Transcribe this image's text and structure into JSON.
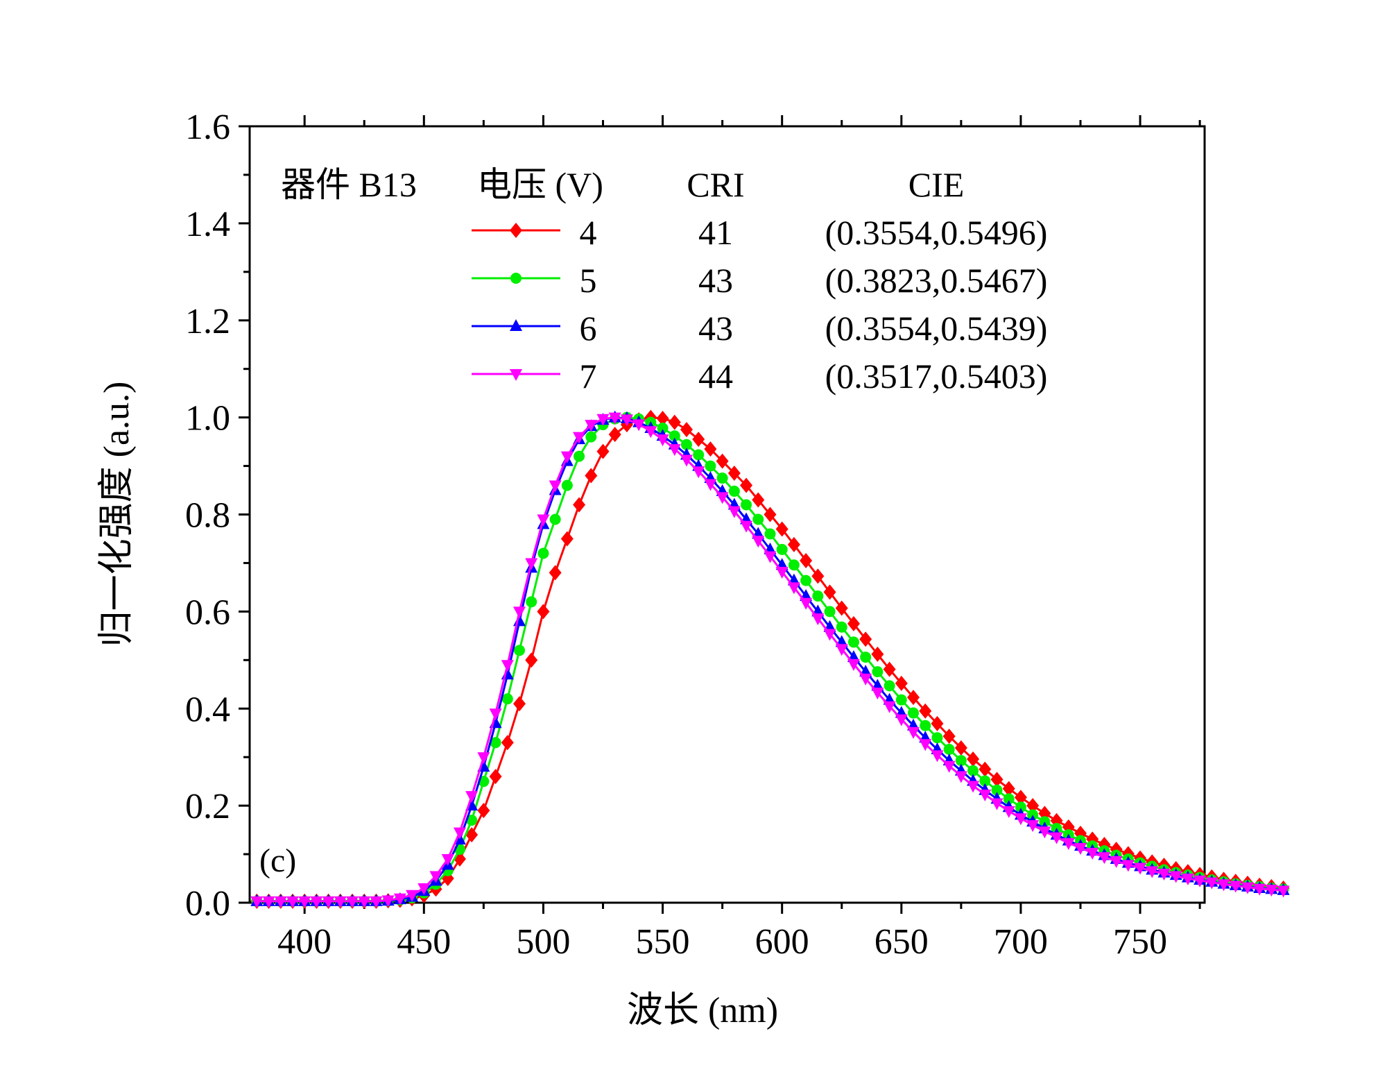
{
  "chart_data": {
    "type": "line",
    "panel_label": "(c)",
    "xlabel": "波长 (nm)",
    "ylabel": "归一化强度 (a.u.)",
    "xlim": [
      377,
      777
    ],
    "ylim": [
      0,
      1.6
    ],
    "xticks": [
      400,
      450,
      500,
      550,
      600,
      650,
      700,
      750
    ],
    "xtick_labels": [
      "400",
      "450",
      "500",
      "550",
      "600",
      "650",
      "700",
      "750"
    ],
    "yticks": [
      0.0,
      0.2,
      0.4,
      0.6,
      0.8,
      1.0,
      1.2,
      1.4,
      1.6
    ],
    "ytick_labels": [
      "0.0",
      "0.2",
      "0.4",
      "0.6",
      "0.8",
      "1.0",
      "1.2",
      "1.4",
      "1.6"
    ],
    "legend": {
      "device_label": "器件 B13",
      "col_voltage": "电压 (V)",
      "col_cri": "CRI",
      "col_cie": "CIE",
      "placement": "top-left"
    },
    "x_start": 380,
    "x_step": 5,
    "series": [
      {
        "name": "4",
        "cri": "41",
        "cie": "(0.3554,0.5496)",
        "color": "#ff0000",
        "marker": "diamond",
        "values": [
          0.003,
          0.003,
          0.003,
          0.003,
          0.003,
          0.003,
          0.003,
          0.003,
          0.003,
          0.003,
          0.003,
          0.004,
          0.005,
          0.008,
          0.015,
          0.028,
          0.05,
          0.09,
          0.14,
          0.19,
          0.26,
          0.33,
          0.41,
          0.5,
          0.6,
          0.68,
          0.75,
          0.82,
          0.88,
          0.93,
          0.965,
          0.985,
          0.995,
          1.0,
          0.998,
          0.99,
          0.975,
          0.955,
          0.935,
          0.91,
          0.885,
          0.86,
          0.83,
          0.8,
          0.77,
          0.738,
          0.705,
          0.673,
          0.64,
          0.607,
          0.575,
          0.543,
          0.512,
          0.481,
          0.452,
          0.423,
          0.395,
          0.369,
          0.343,
          0.319,
          0.296,
          0.275,
          0.254,
          0.235,
          0.217,
          0.2,
          0.184,
          0.169,
          0.156,
          0.143,
          0.131,
          0.12,
          0.11,
          0.101,
          0.092,
          0.084,
          0.077,
          0.07,
          0.064,
          0.058,
          0.053,
          0.048,
          0.044,
          0.04,
          0.036,
          0.033,
          0.03
        ]
      },
      {
        "name": "5",
        "cri": "43",
        "cie": "(0.3823,0.5467)",
        "color": "#00ee00",
        "marker": "circle",
        "values": [
          0.003,
          0.003,
          0.003,
          0.003,
          0.003,
          0.003,
          0.003,
          0.003,
          0.003,
          0.003,
          0.003,
          0.004,
          0.006,
          0.01,
          0.02,
          0.038,
          0.066,
          0.11,
          0.17,
          0.25,
          0.33,
          0.42,
          0.52,
          0.62,
          0.72,
          0.79,
          0.86,
          0.92,
          0.96,
          0.985,
          0.997,
          1.0,
          0.997,
          0.99,
          0.978,
          0.962,
          0.944,
          0.923,
          0.9,
          0.875,
          0.848,
          0.82,
          0.79,
          0.76,
          0.728,
          0.696,
          0.664,
          0.632,
          0.6,
          0.568,
          0.537,
          0.506,
          0.476,
          0.447,
          0.418,
          0.391,
          0.365,
          0.34,
          0.316,
          0.293,
          0.272,
          0.251,
          0.232,
          0.214,
          0.197,
          0.181,
          0.167,
          0.153,
          0.14,
          0.128,
          0.117,
          0.107,
          0.098,
          0.09,
          0.082,
          0.075,
          0.068,
          0.062,
          0.057,
          0.052,
          0.047,
          0.043,
          0.039,
          0.036,
          0.033,
          0.03,
          0.028
        ]
      },
      {
        "name": "6",
        "cri": "43",
        "cie": "(0.3554,0.5439)",
        "color": "#0000ff",
        "marker": "triangle-up",
        "values": [
          0.003,
          0.003,
          0.003,
          0.003,
          0.003,
          0.003,
          0.003,
          0.003,
          0.003,
          0.003,
          0.003,
          0.004,
          0.007,
          0.012,
          0.024,
          0.045,
          0.078,
          0.13,
          0.2,
          0.28,
          0.37,
          0.47,
          0.58,
          0.69,
          0.78,
          0.85,
          0.91,
          0.955,
          0.982,
          0.995,
          1.0,
          0.998,
          0.99,
          0.978,
          0.962,
          0.944,
          0.923,
          0.9,
          0.875,
          0.848,
          0.82,
          0.79,
          0.76,
          0.728,
          0.696,
          0.664,
          0.632,
          0.6,
          0.568,
          0.537,
          0.506,
          0.476,
          0.447,
          0.418,
          0.391,
          0.365,
          0.34,
          0.316,
          0.293,
          0.272,
          0.251,
          0.232,
          0.214,
          0.197,
          0.181,
          0.167,
          0.153,
          0.14,
          0.128,
          0.117,
          0.107,
          0.098,
          0.09,
          0.082,
          0.075,
          0.068,
          0.062,
          0.057,
          0.052,
          0.047,
          0.043,
          0.039,
          0.036,
          0.033,
          0.03,
          0.028,
          0.026
        ]
      },
      {
        "name": "7",
        "cri": "44",
        "cie": "(0.3517,0.5403)",
        "color": "#ff00ff",
        "marker": "triangle-down",
        "values": [
          0.003,
          0.003,
          0.003,
          0.003,
          0.003,
          0.003,
          0.003,
          0.003,
          0.003,
          0.003,
          0.003,
          0.005,
          0.009,
          0.016,
          0.03,
          0.055,
          0.09,
          0.145,
          0.22,
          0.3,
          0.39,
          0.49,
          0.6,
          0.7,
          0.79,
          0.86,
          0.92,
          0.96,
          0.985,
          0.997,
          1.0,
          0.996,
          0.986,
          0.972,
          0.955,
          0.935,
          0.913,
          0.889,
          0.863,
          0.836,
          0.807,
          0.777,
          0.746,
          0.714,
          0.682,
          0.65,
          0.618,
          0.586,
          0.554,
          0.523,
          0.492,
          0.462,
          0.433,
          0.405,
          0.378,
          0.352,
          0.327,
          0.304,
          0.282,
          0.261,
          0.241,
          0.223,
          0.205,
          0.189,
          0.174,
          0.16,
          0.147,
          0.135,
          0.123,
          0.113,
          0.103,
          0.094,
          0.086,
          0.078,
          0.072,
          0.065,
          0.06,
          0.055,
          0.05,
          0.046,
          0.042,
          0.038,
          0.035,
          0.032,
          0.029,
          0.027,
          0.025
        ]
      }
    ]
  }
}
